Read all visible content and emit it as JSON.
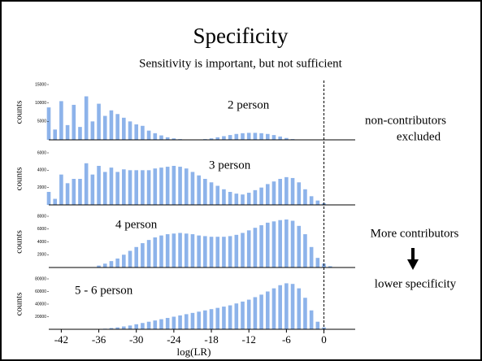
{
  "slide": {
    "title": "Specificity",
    "subtitle": "Sensitivity is important, but not sufficient",
    "notes": [
      "non-contributors",
      "excluded",
      "More contributors",
      "lower specificity"
    ],
    "vline": 0
  },
  "chart_data": [
    {
      "type": "bar",
      "label": "2 person",
      "ylabel": "counts",
      "color": "#8db3ea",
      "x": [
        -44,
        -43,
        -42,
        -41,
        -40,
        -39,
        -38,
        -37,
        -36,
        -35,
        -34,
        -33,
        -32,
        -31,
        -30,
        -29,
        -28,
        -27,
        -26,
        -25,
        -24,
        -23,
        -22,
        -21,
        -20,
        -19,
        -18,
        -17,
        -16,
        -15,
        -14,
        -13,
        -12,
        -11,
        -10,
        -9,
        -8,
        -7,
        -6,
        -5,
        -4,
        -3,
        -2,
        -1,
        0,
        1,
        2
      ],
      "values": [
        8800,
        2800,
        10500,
        4000,
        9500,
        3500,
        11800,
        5000,
        9800,
        6500,
        8000,
        7000,
        6000,
        5000,
        4200,
        3800,
        2500,
        1800,
        1200,
        700,
        400,
        200,
        100,
        0,
        0,
        200,
        400,
        700,
        1000,
        1300,
        1600,
        1800,
        1900,
        1900,
        1800,
        1600,
        1300,
        900,
        500,
        200,
        0,
        0,
        0,
        0,
        0,
        0,
        0
      ],
      "xlim": [
        -44,
        5
      ],
      "ylim": [
        0,
        15000
      ],
      "yticks": [
        5000,
        10000,
        15000
      ]
    },
    {
      "type": "bar",
      "label": "3 person",
      "ylabel": "counts",
      "color": "#8db3ea",
      "x": [
        -44,
        -43,
        -42,
        -41,
        -40,
        -39,
        -38,
        -37,
        -36,
        -35,
        -34,
        -33,
        -32,
        -31,
        -30,
        -29,
        -28,
        -27,
        -26,
        -25,
        -24,
        -23,
        -22,
        -21,
        -20,
        -19,
        -18,
        -17,
        -16,
        -15,
        -14,
        -13,
        -12,
        -11,
        -10,
        -9,
        -8,
        -7,
        -6,
        -5,
        -4,
        -3,
        -2,
        -1,
        0,
        1,
        2
      ],
      "values": [
        1500,
        700,
        3500,
        2500,
        3000,
        3000,
        4800,
        3500,
        4500,
        3800,
        4300,
        3800,
        4100,
        4000,
        4000,
        4000,
        4000,
        4200,
        4300,
        4400,
        4500,
        4400,
        4200,
        3800,
        3400,
        3000,
        2600,
        2200,
        1800,
        1500,
        1300,
        1200,
        1400,
        1700,
        2000,
        2400,
        2700,
        3000,
        3200,
        3100,
        2600,
        1800,
        1000,
        500,
        200,
        0,
        0
      ],
      "xlim": [
        -44,
        5
      ],
      "ylim": [
        0,
        6000
      ],
      "yticks": [
        2000,
        4000,
        6000
      ]
    },
    {
      "type": "bar",
      "label": "4 person",
      "ylabel": "counts",
      "color": "#8db3ea",
      "x": [
        -44,
        -43,
        -42,
        -41,
        -40,
        -39,
        -38,
        -37,
        -36,
        -35,
        -34,
        -33,
        -32,
        -31,
        -30,
        -29,
        -28,
        -27,
        -26,
        -25,
        -24,
        -23,
        -22,
        -21,
        -20,
        -19,
        -18,
        -17,
        -16,
        -15,
        -14,
        -13,
        -12,
        -11,
        -10,
        -9,
        -8,
        -7,
        -6,
        -5,
        -4,
        -3,
        -2,
        -1,
        0,
        1,
        2
      ],
      "values": [
        0,
        0,
        0,
        0,
        0,
        0,
        0,
        0,
        300,
        600,
        1000,
        1400,
        2000,
        2600,
        3200,
        3800,
        4300,
        4700,
        5000,
        5200,
        5300,
        5400,
        5300,
        5200,
        5000,
        4900,
        4800,
        4800,
        4800,
        4900,
        5100,
        5400,
        5800,
        6200,
        6600,
        7000,
        7200,
        7400,
        7500,
        7300,
        6500,
        5200,
        3200,
        1500,
        600,
        200,
        0
      ],
      "xlim": [
        -44,
        5
      ],
      "ylim": [
        0,
        8000
      ],
      "yticks": [
        2000,
        4000,
        6000,
        8000
      ]
    },
    {
      "type": "bar",
      "label": "5 - 6 person",
      "ylabel": "counts",
      "xlabel": "log(LR)",
      "color": "#8db3ea",
      "x": [
        -44,
        -43,
        -42,
        -41,
        -40,
        -39,
        -38,
        -37,
        -36,
        -35,
        -34,
        -33,
        -32,
        -31,
        -30,
        -29,
        -28,
        -27,
        -26,
        -25,
        -24,
        -23,
        -22,
        -21,
        -20,
        -19,
        -18,
        -17,
        -16,
        -15,
        -14,
        -13,
        -12,
        -11,
        -10,
        -9,
        -8,
        -7,
        -6,
        -5,
        -4,
        -3,
        -2,
        -1,
        0,
        1,
        2
      ],
      "values": [
        0,
        0,
        0,
        0,
        0,
        0,
        0,
        0,
        500,
        1000,
        2000,
        3000,
        4500,
        6000,
        8000,
        10000,
        12000,
        14000,
        16000,
        18000,
        20000,
        22000,
        24000,
        26000,
        28000,
        30000,
        32000,
        34000,
        36000,
        38000,
        41000,
        44000,
        47000,
        51000,
        55000,
        60000,
        65000,
        70000,
        73000,
        72000,
        65000,
        50000,
        30000,
        12000,
        3000,
        500,
        0
      ],
      "xlim": [
        -44,
        5
      ],
      "ylim": [
        0,
        80000
      ],
      "yticks": [
        20000,
        40000,
        60000,
        80000
      ],
      "xticks": [
        -42,
        -36,
        -30,
        -24,
        -18,
        -12,
        -6,
        0
      ]
    }
  ]
}
